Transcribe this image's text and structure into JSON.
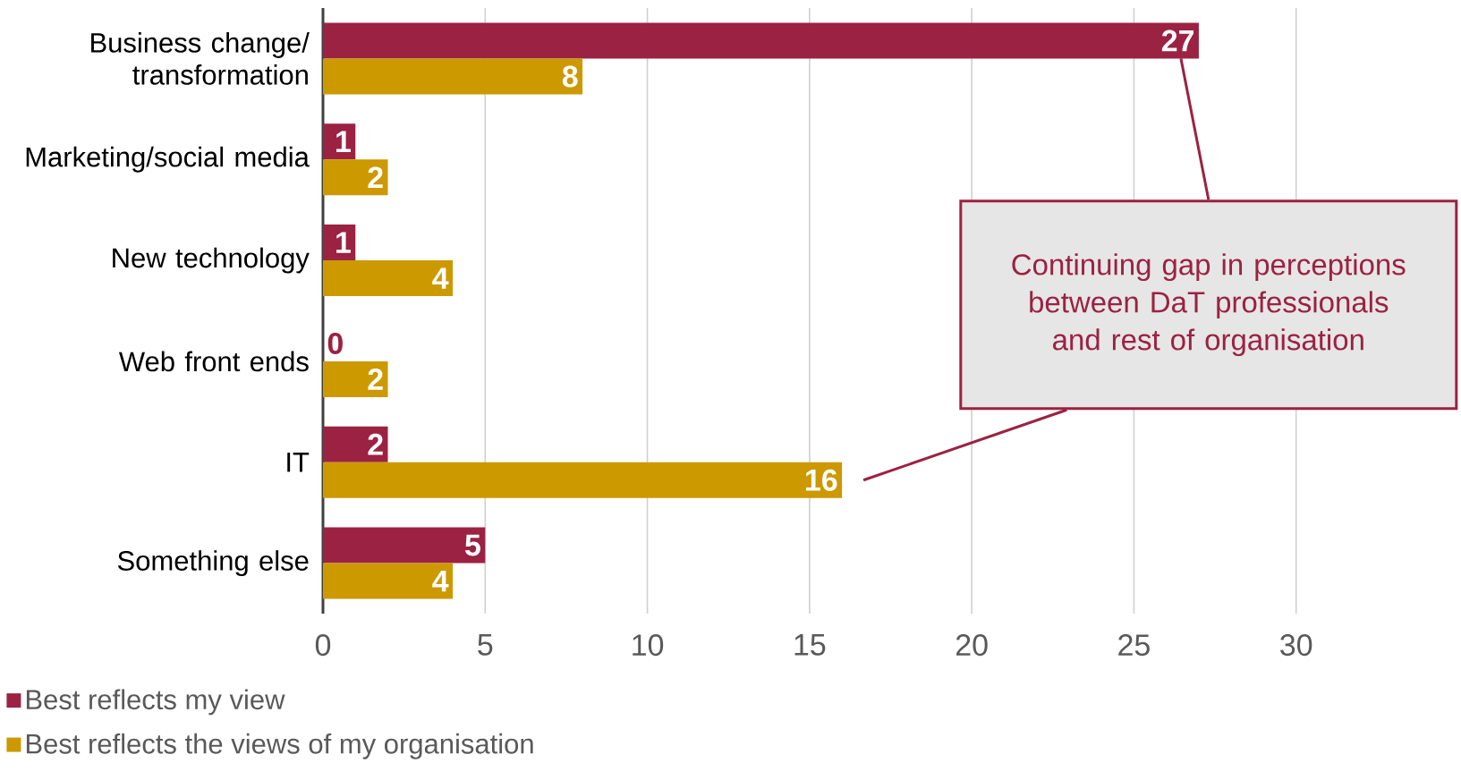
{
  "chart_data": {
    "type": "bar",
    "orientation": "horizontal",
    "categories": [
      "Business change/ transformation",
      "Marketing/social media",
      "New technology",
      "Web front ends",
      "IT",
      "Something else"
    ],
    "series": [
      {
        "name": "Best reflects my view",
        "color": "#9b2242",
        "values": [
          27,
          1,
          1,
          0,
          2,
          5
        ]
      },
      {
        "name": "Best reflects the views of my organisation",
        "color": "#cc9900",
        "values": [
          8,
          2,
          4,
          2,
          16,
          4
        ]
      }
    ],
    "xlim": [
      0,
      35
    ],
    "xticks": [
      0,
      5,
      10,
      15,
      20,
      25,
      30
    ],
    "grid": "x",
    "data_labels": true,
    "legend": "bottom",
    "annotations": [
      "Continuing gap in perceptions between DaT professionals and rest of organisation"
    ]
  }
}
